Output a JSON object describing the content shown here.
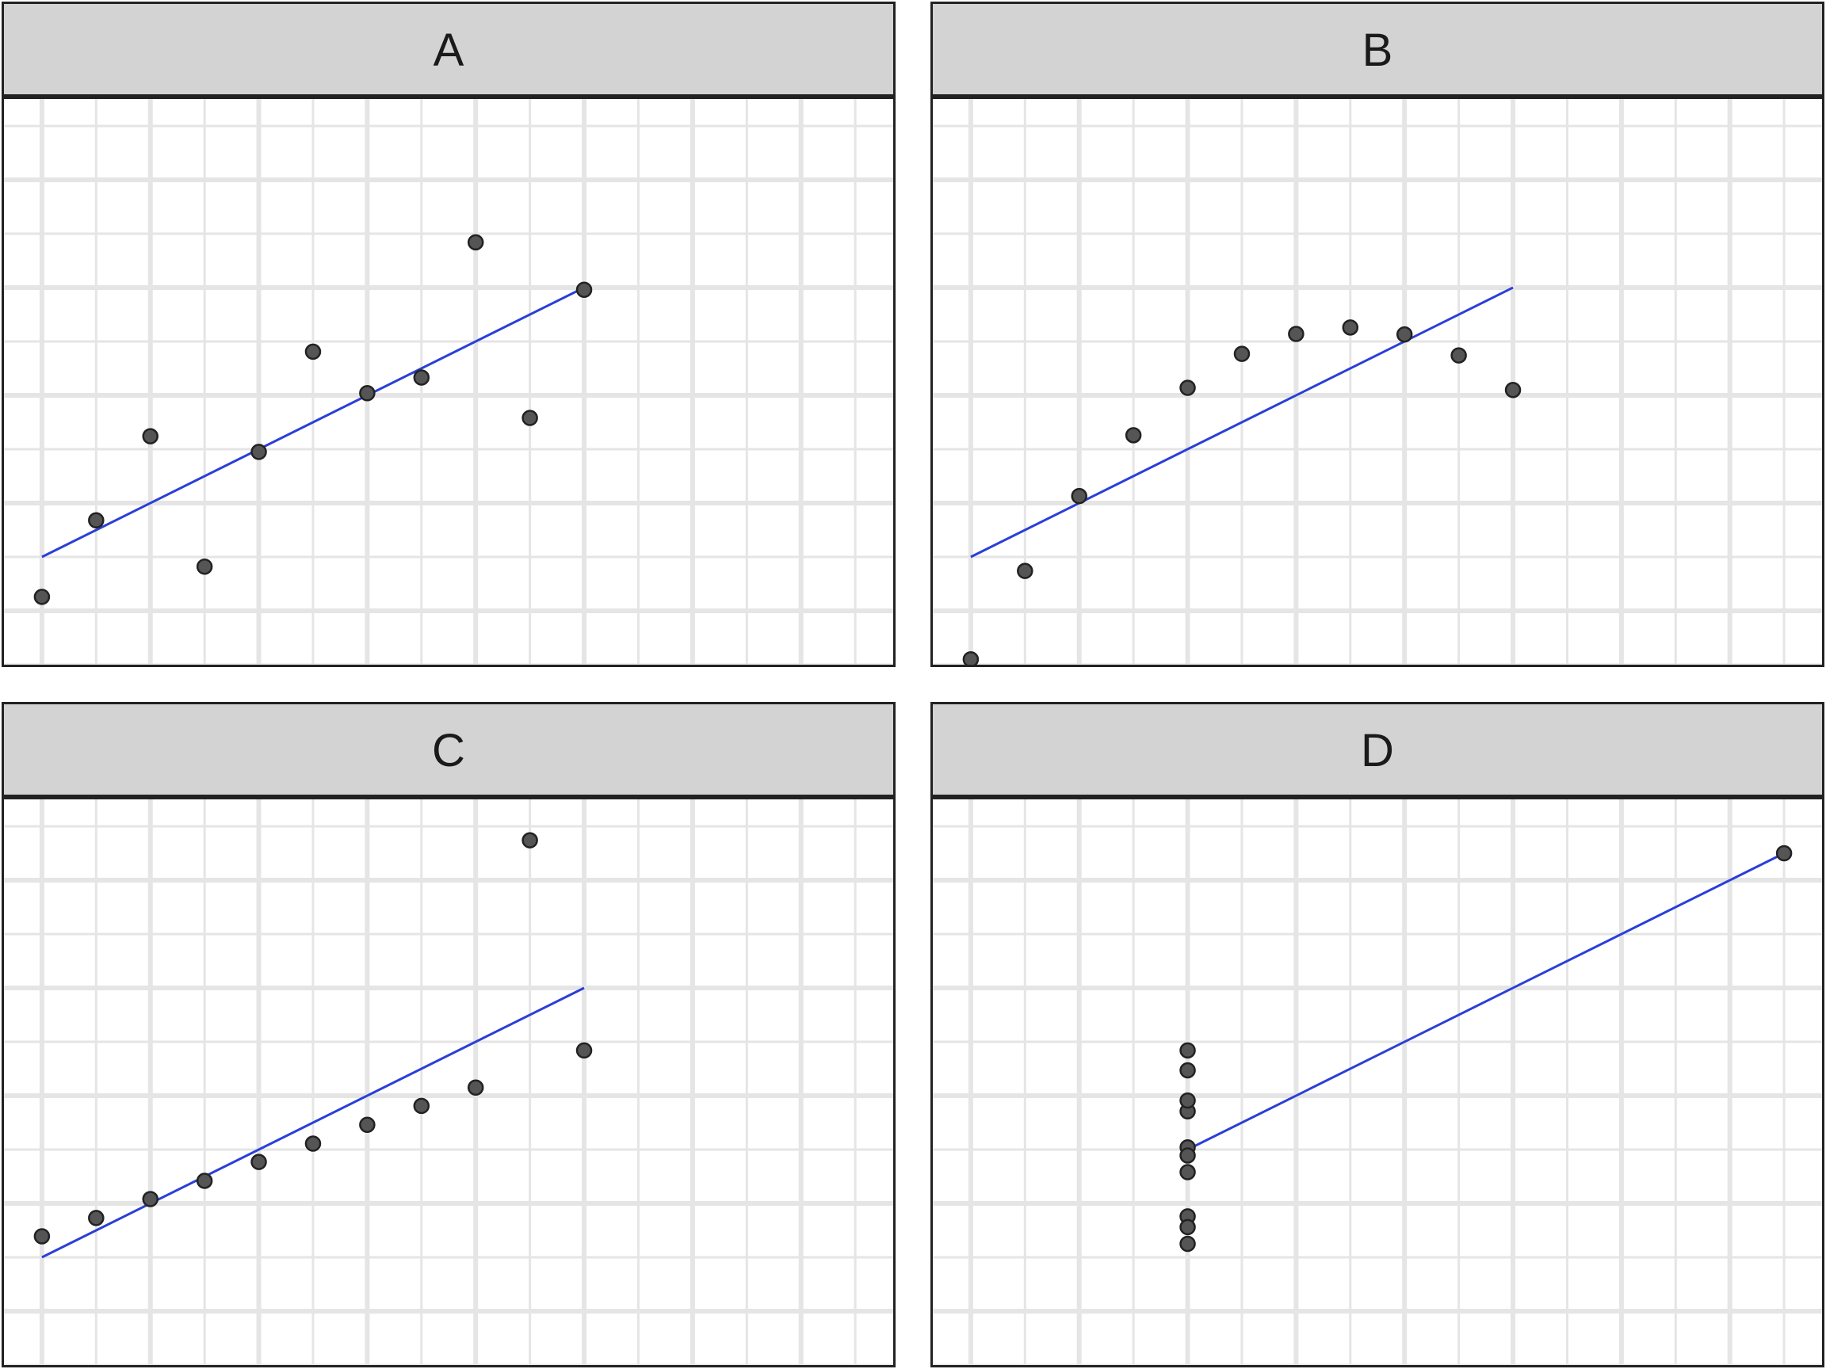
{
  "chart_data": [
    {
      "type": "scatter",
      "panel": "A",
      "x": [
        10,
        8,
        13,
        9,
        11,
        14,
        6,
        4,
        12,
        7,
        5
      ],
      "y": [
        8.04,
        6.95,
        7.58,
        8.81,
        8.33,
        9.96,
        7.24,
        4.26,
        10.84,
        4.82,
        5.68
      ],
      "fit_line": {
        "intercept": 3.0,
        "slope": 0.5,
        "x_range": [
          4,
          14
        ]
      },
      "xlim": [
        3.3,
        19.7
      ],
      "ylim": [
        3.0,
        13.5
      ],
      "grid": true,
      "point_color": "#555555",
      "line_color": "#2a3fd8"
    },
    {
      "type": "scatter",
      "panel": "B",
      "x": [
        10,
        8,
        13,
        9,
        11,
        14,
        6,
        4,
        12,
        7,
        5
      ],
      "y": [
        9.14,
        8.14,
        8.74,
        8.77,
        9.26,
        8.1,
        6.13,
        3.1,
        9.13,
        7.26,
        4.74
      ],
      "fit_line": {
        "intercept": 3.0,
        "slope": 0.5,
        "x_range": [
          4,
          14
        ]
      },
      "xlim": [
        3.3,
        19.7
      ],
      "ylim": [
        3.0,
        13.5
      ],
      "grid": true,
      "point_color": "#555555",
      "line_color": "#2a3fd8"
    },
    {
      "type": "scatter",
      "panel": "C",
      "x": [
        10,
        8,
        13,
        9,
        11,
        14,
        6,
        4,
        12,
        7,
        5
      ],
      "y": [
        7.46,
        6.77,
        12.74,
        7.11,
        7.81,
        8.84,
        6.08,
        5.39,
        8.15,
        6.42,
        5.73
      ],
      "fit_line": {
        "intercept": 3.0,
        "slope": 0.5,
        "x_range": [
          4,
          14
        ]
      },
      "xlim": [
        3.3,
        19.7
      ],
      "ylim": [
        3.0,
        13.5
      ],
      "grid": true,
      "point_color": "#555555",
      "line_color": "#2a3fd8"
    },
    {
      "type": "scatter",
      "panel": "D",
      "x": [
        8,
        8,
        8,
        8,
        8,
        8,
        8,
        19,
        8,
        8,
        8
      ],
      "y": [
        6.58,
        5.76,
        7.71,
        8.84,
        8.47,
        7.04,
        5.25,
        12.5,
        5.56,
        7.91,
        6.89
      ],
      "fit_line": {
        "intercept": 3.0,
        "slope": 0.5,
        "x_range": [
          8,
          19
        ]
      },
      "xlim": [
        3.3,
        19.7
      ],
      "ylim": [
        3.0,
        13.5
      ],
      "grid": true,
      "point_color": "#555555",
      "line_color": "#2a3fd8"
    }
  ]
}
